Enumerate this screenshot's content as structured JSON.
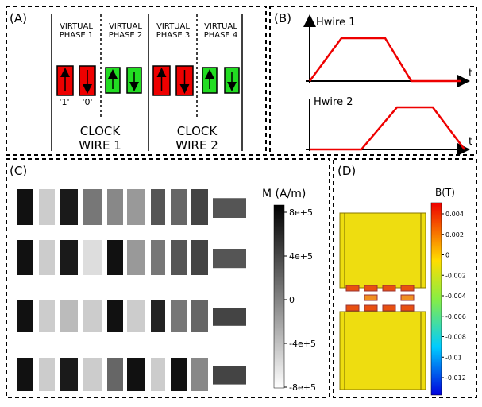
{
  "panel_a": {
    "label": "(A)",
    "phases": [
      {
        "line1": "VIRTUAL",
        "line2": "PHASE 1"
      },
      {
        "line1": "VIRTUAL",
        "line2": "PHASE 2"
      },
      {
        "line1": "VIRTUAL",
        "line2": "PHASE 3"
      },
      {
        "line1": "VIRTUAL",
        "line2": "PHASE 4"
      }
    ],
    "bit_labels": [
      "'1'",
      "'0'"
    ],
    "clock_wires": [
      {
        "line1": "CLOCK",
        "line2": "WIRE 1"
      },
      {
        "line1": "CLOCK",
        "line2": "WIRE 2"
      }
    ]
  },
  "panel_b": {
    "label": "(B)",
    "plots": [
      {
        "title": "Hwire 1",
        "axis_label": "t"
      },
      {
        "title": "Hwire 2",
        "axis_label": "t"
      }
    ]
  },
  "panel_c": {
    "label": "(C)",
    "colorbar": {
      "title": "M (A/m)",
      "ticks": [
        "8e+5",
        "4e+5",
        "0",
        "-4e+5",
        "-8e+5"
      ]
    }
  },
  "panel_d": {
    "label": "(D)",
    "colorbar": {
      "title": "B(T)",
      "ticks": [
        "0.004",
        "0.002",
        "0",
        "-0.002",
        "-0.004",
        "-0.006",
        "-0.008",
        "-0.01",
        "-0.012"
      ]
    }
  }
}
